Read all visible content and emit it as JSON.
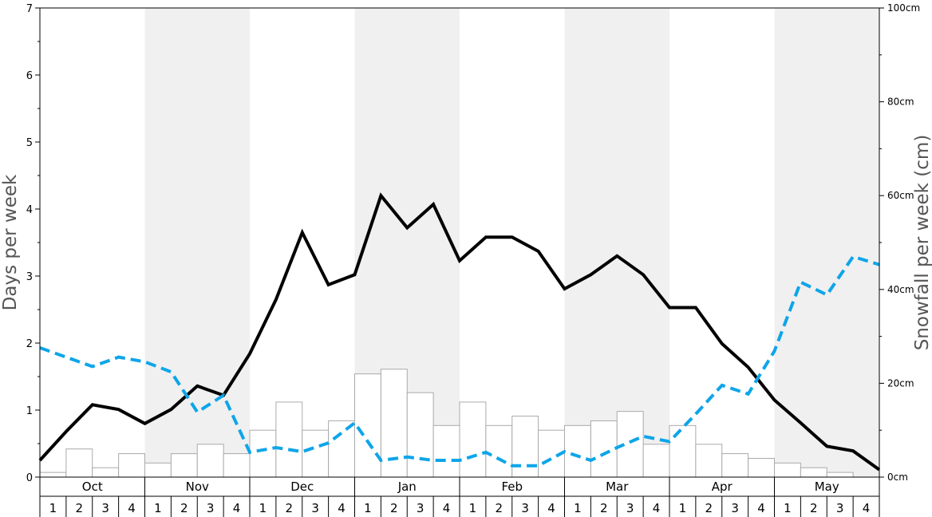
{
  "chart_data": {
    "type": "bar",
    "months": [
      "Oct",
      "Nov",
      "Dec",
      "Jan",
      "Feb",
      "Mar",
      "Apr",
      "May"
    ],
    "week_labels": [
      "1",
      "2",
      "3",
      "4"
    ],
    "ylabel_left": "Days per week",
    "ylabel_right": "Snowfall per week (cm)",
    "ylim_left": [
      0,
      7
    ],
    "left_ticks": [
      "0",
      "1",
      "2",
      "3",
      "4",
      "5",
      "6",
      "7"
    ],
    "ylim_right": [
      0,
      100
    ],
    "right_ticks": [
      "0cm",
      "20cm",
      "40cm",
      "60cm",
      "80cm",
      "100cm"
    ],
    "shaded_months": [
      "Nov",
      "Jan",
      "Mar",
      "May"
    ],
    "colors": {
      "bars_fill": "#ffffff",
      "bars_stroke": "#aaaaaa",
      "line_solid": "#000000",
      "line_dashed": "#0ea5e9",
      "shade": "#f0f0f0"
    },
    "series": [
      {
        "type": "bar",
        "axis": "right",
        "values": [
          1,
          6,
          2,
          5,
          3,
          5,
          7,
          5,
          10,
          16,
          10,
          12,
          22,
          23,
          18,
          11,
          16,
          11,
          13,
          10,
          11,
          12,
          14,
          7,
          11,
          7,
          5,
          4,
          3,
          2,
          1,
          0
        ]
      },
      {
        "type": "line",
        "style": "solid",
        "axis": "left",
        "values": [
          0.25,
          0.68,
          1.08,
          1.01,
          0.8,
          1.01,
          1.36,
          1.22,
          1.84,
          2.65,
          3.65,
          2.87,
          3.02,
          4.2,
          3.72,
          4.07,
          3.23,
          3.58,
          3.58,
          3.37,
          2.81,
          3.02,
          3.3,
          3.02,
          2.53,
          2.53,
          1.99,
          1.64,
          1.15,
          0.81,
          0.46,
          0.39,
          0.11
        ]
      },
      {
        "type": "line",
        "style": "dashed",
        "axis": "left",
        "values": [
          1.93,
          1.79,
          1.65,
          1.79,
          1.72,
          1.57,
          0.97,
          1.22,
          0.37,
          0.44,
          0.38,
          0.51,
          0.81,
          0.25,
          0.3,
          0.25,
          0.25,
          0.37,
          0.17,
          0.17,
          0.38,
          0.25,
          0.44,
          0.61,
          0.53,
          0.94,
          1.37,
          1.24,
          1.88,
          2.91,
          2.72,
          3.29,
          3.17
        ]
      }
    ]
  }
}
